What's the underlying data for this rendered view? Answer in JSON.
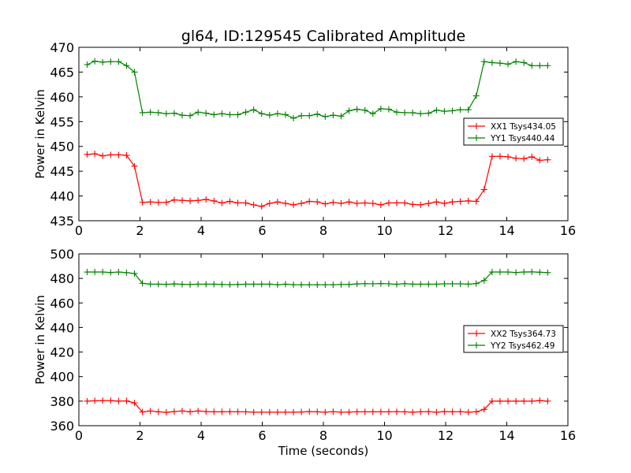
{
  "figure": {
    "title": "gl64, ID:129545 Calibrated Amplitude"
  },
  "chart_data": [
    {
      "type": "line",
      "title": "gl64, ID:129545 Calibrated Amplitude",
      "xlabel": "",
      "ylabel": "Power in Kelvin",
      "xlim": [
        0,
        16
      ],
      "ylim": [
        435,
        470
      ],
      "xticks": [
        0,
        2,
        4,
        6,
        8,
        10,
        12,
        14,
        16
      ],
      "yticks": [
        435,
        440,
        445,
        450,
        455,
        460,
        465,
        470
      ],
      "grid": false,
      "legend_position": "right",
      "marker": "+",
      "x": [
        0.27,
        0.52,
        0.78,
        1.04,
        1.3,
        1.56,
        1.82,
        2.08,
        2.34,
        2.6,
        2.86,
        3.12,
        3.38,
        3.64,
        3.9,
        4.16,
        4.42,
        4.68,
        4.94,
        5.2,
        5.46,
        5.72,
        5.98,
        6.24,
        6.5,
        6.76,
        7.02,
        7.28,
        7.54,
        7.8,
        8.06,
        8.32,
        8.58,
        8.84,
        9.1,
        9.36,
        9.62,
        9.88,
        10.14,
        10.4,
        10.66,
        10.92,
        11.18,
        11.44,
        11.7,
        11.96,
        12.22,
        12.48,
        12.74,
        13.0,
        13.26,
        13.52,
        13.78,
        14.04,
        14.3,
        14.56,
        14.82,
        15.08,
        15.34
      ],
      "series": [
        {
          "name": "XX1 Tsys434.05",
          "color": "#ff0000",
          "values": [
            448.4,
            448.5,
            448.1,
            448.3,
            448.3,
            448.2,
            446.0,
            438.7,
            438.8,
            438.7,
            438.7,
            439.2,
            439.1,
            439.0,
            439.1,
            439.3,
            439.0,
            438.6,
            438.9,
            438.6,
            438.6,
            438.2,
            437.9,
            438.5,
            438.8,
            438.5,
            438.2,
            438.5,
            438.9,
            438.8,
            438.4,
            438.7,
            438.5,
            438.8,
            438.5,
            438.6,
            438.5,
            438.2,
            438.6,
            438.6,
            438.6,
            438.3,
            438.2,
            438.5,
            438.8,
            438.5,
            438.8,
            438.9,
            439.0,
            438.9,
            441.3,
            448.0,
            448.0,
            447.9,
            447.6,
            447.5,
            447.9,
            447.2,
            447.3
          ]
        },
        {
          "name": "YY1 Tsys440.44",
          "color": "#008000",
          "values": [
            466.5,
            467.2,
            467.0,
            467.1,
            467.1,
            466.3,
            465.0,
            456.8,
            456.9,
            456.8,
            456.6,
            456.7,
            456.3,
            456.2,
            456.9,
            456.7,
            456.4,
            456.6,
            456.4,
            456.4,
            456.9,
            457.4,
            456.6,
            456.3,
            456.6,
            456.4,
            455.7,
            456.2,
            456.2,
            456.5,
            456.0,
            456.3,
            456.1,
            457.2,
            457.5,
            457.3,
            456.6,
            457.6,
            457.5,
            456.9,
            456.8,
            456.8,
            456.6,
            456.7,
            457.3,
            457.1,
            457.2,
            457.4,
            457.4,
            460.2,
            467.1,
            466.9,
            466.8,
            466.6,
            467.1,
            466.9,
            466.3,
            466.3,
            466.3
          ]
        }
      ]
    },
    {
      "type": "line",
      "title": "",
      "xlabel": "Time (seconds)",
      "ylabel": "Power in Kelvin",
      "xlim": [
        0,
        16
      ],
      "ylim": [
        360,
        500
      ],
      "xticks": [
        0,
        2,
        4,
        6,
        8,
        10,
        12,
        14,
        16
      ],
      "yticks": [
        360,
        380,
        400,
        420,
        440,
        460,
        480,
        500
      ],
      "grid": false,
      "legend_position": "right",
      "marker": "+",
      "x": [
        0.27,
        0.52,
        0.78,
        1.04,
        1.3,
        1.56,
        1.82,
        2.08,
        2.34,
        2.6,
        2.86,
        3.12,
        3.38,
        3.64,
        3.9,
        4.16,
        4.42,
        4.68,
        4.94,
        5.2,
        5.46,
        5.72,
        5.98,
        6.24,
        6.5,
        6.76,
        7.02,
        7.28,
        7.54,
        7.8,
        8.06,
        8.32,
        8.58,
        8.84,
        9.1,
        9.36,
        9.62,
        9.88,
        10.14,
        10.4,
        10.66,
        10.92,
        11.18,
        11.44,
        11.7,
        11.96,
        12.22,
        12.48,
        12.74,
        13.0,
        13.26,
        13.52,
        13.78,
        14.04,
        14.3,
        14.56,
        14.82,
        15.08,
        15.34
      ],
      "series": [
        {
          "name": "XX2 Tsys364.73",
          "color": "#ff0000",
          "values": [
            380.0,
            380.3,
            380.4,
            380.5,
            380.0,
            380.2,
            378.5,
            371.2,
            372.0,
            371.3,
            370.9,
            371.5,
            372.0,
            371.3,
            372.0,
            371.5,
            371.3,
            371.3,
            371.4,
            371.3,
            371.3,
            371.0,
            371.0,
            371.0,
            371.0,
            371.0,
            371.0,
            371.2,
            371.5,
            371.3,
            371.0,
            371.4,
            371.0,
            371.1,
            371.3,
            371.3,
            371.3,
            371.3,
            371.3,
            371.4,
            371.3,
            371.0,
            371.3,
            371.4,
            371.0,
            371.5,
            371.3,
            371.4,
            371.0,
            371.3,
            373.3,
            380.0,
            380.0,
            380.0,
            380.0,
            380.0,
            380.0,
            380.5,
            380.0
          ]
        },
        {
          "name": "YY2 Tsys462.49",
          "color": "#008000",
          "values": [
            485.2,
            485.2,
            485.2,
            484.8,
            485.2,
            484.7,
            484.0,
            476.0,
            475.3,
            475.3,
            475.2,
            475.5,
            475.2,
            475.0,
            475.3,
            475.3,
            475.3,
            475.1,
            474.9,
            475.0,
            475.3,
            475.3,
            475.3,
            475.3,
            474.8,
            475.3,
            474.8,
            474.8,
            474.8,
            474.8,
            474.8,
            474.8,
            475.0,
            475.0,
            475.5,
            475.7,
            475.6,
            475.8,
            475.6,
            475.2,
            475.7,
            475.3,
            475.3,
            475.3,
            475.3,
            475.6,
            475.6,
            475.6,
            475.3,
            475.8,
            478.3,
            485.2,
            485.2,
            485.2,
            484.8,
            485.2,
            485.3,
            485.0,
            484.7
          ]
        }
      ]
    }
  ]
}
